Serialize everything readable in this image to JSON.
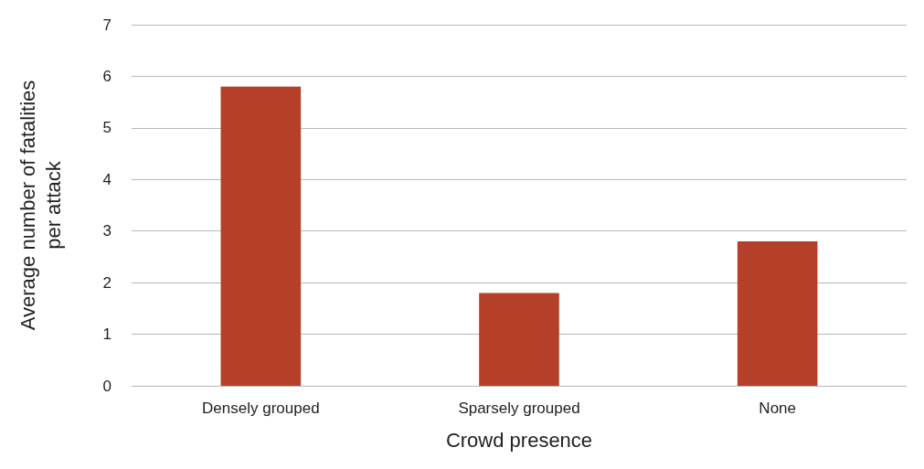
{
  "chart_data": {
    "type": "bar",
    "xlabel": "Crowd presence",
    "ylabel": "Average number of fatalities\nper attack",
    "categories": [
      "Densely grouped",
      "Sparsely grouped",
      "None"
    ],
    "values": [
      5.8,
      1.8,
      2.8
    ],
    "color": "#b5402a",
    "ylim": [
      0,
      7
    ],
    "yticks": [
      0,
      1,
      2,
      3,
      4,
      5,
      6,
      7
    ],
    "grid": "y"
  }
}
